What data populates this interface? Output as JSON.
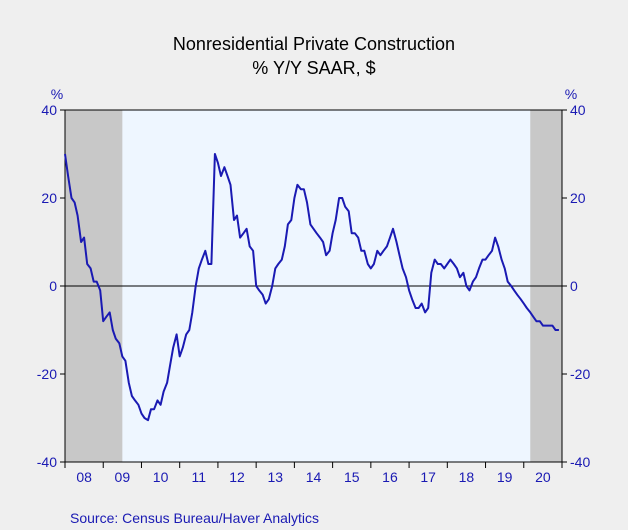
{
  "chart_data": {
    "type": "line",
    "title": "Nonresidential Private Construction",
    "subtitle": "% Y/Y   SAAR, $",
    "ylabel_left": "%",
    "ylabel_right": "%",
    "ylim": [
      -40,
      40
    ],
    "yticks": [
      40,
      20,
      0,
      -20,
      -40
    ],
    "x_range": [
      2008.0,
      2021.0
    ],
    "x_tick_labels": [
      "08",
      "09",
      "10",
      "11",
      "12",
      "13",
      "14",
      "15",
      "16",
      "17",
      "18",
      "19",
      "20"
    ],
    "recessions": [
      [
        2008.0,
        2009.5
      ],
      [
        2020.17,
        2021.0
      ]
    ],
    "grid": false,
    "zero_line": true,
    "source": "Source:  Census Bureau/Haver Analytics",
    "series": [
      {
        "color": "#1a1ab3",
        "x": [
          2008.0,
          2008.08,
          2008.17,
          2008.25,
          2008.33,
          2008.42,
          2008.5,
          2008.58,
          2008.67,
          2008.75,
          2008.83,
          2008.92,
          2009.0,
          2009.08,
          2009.17,
          2009.25,
          2009.33,
          2009.42,
          2009.5,
          2009.58,
          2009.67,
          2009.75,
          2009.83,
          2009.92,
          2010.0,
          2010.08,
          2010.17,
          2010.25,
          2010.33,
          2010.42,
          2010.5,
          2010.58,
          2010.67,
          2010.75,
          2010.83,
          2010.92,
          2011.0,
          2011.08,
          2011.17,
          2011.25,
          2011.33,
          2011.42,
          2011.5,
          2011.58,
          2011.67,
          2011.75,
          2011.83,
          2011.92,
          2012.0,
          2012.08,
          2012.17,
          2012.25,
          2012.33,
          2012.42,
          2012.5,
          2012.58,
          2012.67,
          2012.75,
          2012.83,
          2012.92,
          2013.0,
          2013.08,
          2013.17,
          2013.25,
          2013.33,
          2013.42,
          2013.5,
          2013.58,
          2013.67,
          2013.75,
          2013.83,
          2013.92,
          2014.0,
          2014.08,
          2014.17,
          2014.25,
          2014.33,
          2014.42,
          2014.5,
          2014.58,
          2014.67,
          2014.75,
          2014.83,
          2014.92,
          2015.0,
          2015.08,
          2015.17,
          2015.25,
          2015.33,
          2015.42,
          2015.5,
          2015.58,
          2015.67,
          2015.75,
          2015.83,
          2015.92,
          2016.0,
          2016.08,
          2016.17,
          2016.25,
          2016.33,
          2016.42,
          2016.5,
          2016.58,
          2016.67,
          2016.75,
          2016.83,
          2016.92,
          2017.0,
          2017.08,
          2017.17,
          2017.25,
          2017.33,
          2017.42,
          2017.5,
          2017.58,
          2017.67,
          2017.75,
          2017.83,
          2017.92,
          2018.0,
          2018.08,
          2018.17,
          2018.25,
          2018.33,
          2018.42,
          2018.5,
          2018.58,
          2018.67,
          2018.75,
          2018.83,
          2018.92,
          2019.0,
          2019.08,
          2019.17,
          2019.25,
          2019.33,
          2019.42,
          2019.5,
          2019.58,
          2019.67,
          2019.75,
          2019.83,
          2019.92,
          2020.0,
          2020.08,
          2020.17,
          2020.25,
          2020.33,
          2020.42,
          2020.5,
          2020.58,
          2020.67,
          2020.75,
          2020.83,
          2020.92
        ],
        "y": [
          30,
          25,
          20,
          19,
          16,
          10,
          11,
          5,
          4,
          1,
          1,
          -1,
          -8,
          -7,
          -6,
          -10,
          -12,
          -13,
          -16,
          -17,
          -22,
          -25,
          -26,
          -27,
          -29,
          -30,
          -30.5,
          -28,
          -28,
          -26,
          -27,
          -24,
          -22,
          -18,
          -14,
          -11,
          -16,
          -14,
          -11,
          -10,
          -6,
          0,
          4,
          6,
          8,
          5,
          5,
          30,
          28,
          25,
          27,
          25,
          23,
          15,
          16,
          11,
          12,
          13,
          9,
          8,
          0,
          -1,
          -2,
          -4,
          -3,
          0,
          4,
          5,
          6,
          9,
          14,
          15,
          20,
          23,
          22,
          22,
          19,
          14,
          13,
          12,
          11,
          10,
          7,
          8,
          12,
          15,
          20,
          20,
          18,
          17,
          12,
          12,
          11,
          8,
          8,
          5,
          4,
          5,
          8,
          7,
          8,
          9,
          11,
          13,
          10,
          7,
          4,
          2,
          -1,
          -3,
          -5,
          -5,
          -4,
          -6,
          -5,
          3,
          6,
          5,
          5,
          4,
          5,
          6,
          5,
          4,
          2,
          3,
          0,
          -1,
          1,
          2,
          4,
          6,
          6,
          7,
          8,
          11,
          9,
          6,
          4,
          1,
          0,
          -1,
          -2,
          -3,
          -4,
          -5,
          -6,
          -7,
          -8,
          -8,
          -9,
          -9,
          -9,
          -9,
          -10,
          -10
        ]
      }
    ]
  }
}
